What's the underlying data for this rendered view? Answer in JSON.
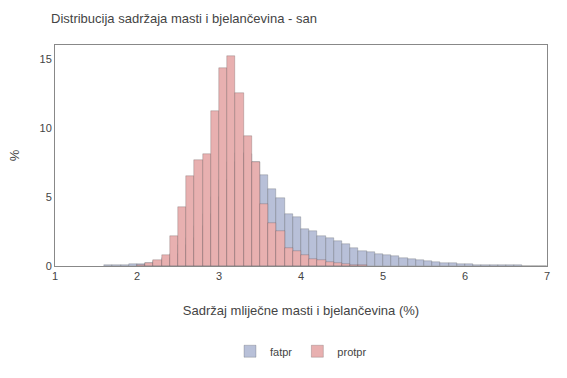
{
  "chart_data": {
    "type": "histogram",
    "title": "Distribucija sadržaja masti i bjelančevina - san",
    "xlabel": "Sadržaj mliječne masti i bjelančevina (%)",
    "ylabel": "%",
    "xlim": [
      1,
      7
    ],
    "ylim": [
      0,
      16
    ],
    "xticks": [
      1,
      2,
      3,
      4,
      5,
      6,
      7
    ],
    "yticks": [
      0,
      5,
      10,
      15
    ],
    "grid": false,
    "legend": "bottom",
    "series": [
      {
        "name": "fatpr",
        "color": "#b8c0d8",
        "bins": [
          1.6,
          1.7,
          1.8,
          1.9,
          2.0,
          2.1,
          2.2,
          2.3,
          2.4,
          2.5,
          2.6,
          2.7,
          2.8,
          2.9,
          3.0,
          3.1,
          3.2,
          3.3,
          3.4,
          3.5,
          3.6,
          3.7,
          3.8,
          3.9,
          4.0,
          4.1,
          4.2,
          4.3,
          4.4,
          4.5,
          4.6,
          4.7,
          4.8,
          4.9,
          5.0,
          5.1,
          5.2,
          5.3,
          5.4,
          5.5,
          5.6,
          5.7,
          5.8,
          5.9,
          6.0,
          6.1,
          6.2,
          6.3,
          6.4,
          6.5,
          6.6,
          6.7,
          6.8,
          6.9,
          7.0
        ],
        "values": [
          0.05,
          0.08,
          0.1,
          0.12,
          0.15,
          0.25,
          0.38,
          0.55,
          0.9,
          1.55,
          2.05,
          2.9,
          3.8,
          5.0,
          6.2,
          7.5,
          8.2,
          8.1,
          7.5,
          6.6,
          5.55,
          4.9,
          3.8,
          3.55,
          2.7,
          2.5,
          2.2,
          2.0,
          1.8,
          1.6,
          1.3,
          1.1,
          1.0,
          0.9,
          0.8,
          0.7,
          0.6,
          0.5,
          0.4,
          0.35,
          0.3,
          0.25,
          0.2,
          0.15,
          0.12,
          0.1,
          0.08,
          0.07,
          0.06,
          0.05,
          0.04,
          0.03,
          0.03,
          0.02
        ]
      },
      {
        "name": "protpr",
        "color": "#e8b0b0",
        "bins": [
          2.0,
          2.1,
          2.2,
          2.3,
          2.4,
          2.5,
          2.6,
          2.7,
          2.8,
          2.9,
          3.0,
          3.1,
          3.2,
          3.3,
          3.4,
          3.5,
          3.6,
          3.7,
          3.8,
          3.9,
          4.0,
          4.1,
          4.2,
          4.3,
          4.4,
          4.5,
          4.6,
          4.7,
          4.8
        ],
        "values": [
          0.1,
          0.2,
          0.4,
          0.8,
          2.2,
          4.3,
          6.5,
          7.7,
          8.1,
          11.2,
          14.3,
          15.2,
          12.5,
          9.4,
          7.5,
          4.5,
          3.1,
          2.5,
          1.3,
          1.1,
          0.8,
          0.5,
          0.4,
          0.3,
          0.2,
          0.15,
          0.1,
          0.05
        ]
      }
    ]
  }
}
